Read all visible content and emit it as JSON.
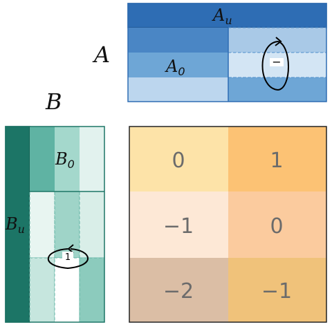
{
  "labels": {
    "A": "A",
    "B": "B",
    "A_u_main": "A",
    "A_u_sub": "u",
    "A_0_main": "A",
    "A_0_sub": "0",
    "B_0_main": "B",
    "B_0_sub": "0",
    "B_u_main": "B",
    "B_u_sub": "u",
    "A_rotation_sign": "−",
    "B_rotation_sign": "1"
  },
  "grid": {
    "rows": [
      [
        "0",
        "1"
      ],
      [
        "−1",
        "0"
      ],
      [
        "−2",
        "−1"
      ]
    ]
  },
  "colors": {
    "A_dark": "#2e6db4",
    "A_mid": "#4f8fcb",
    "A_light": "#6fa7d6",
    "A_pale": "#bcd6ee",
    "B_dark": "#1c7566",
    "B_mid": "#5fb3a3",
    "B_light": "#9fd4c8",
    "B_pale": "#dff1ec",
    "grid_row1_left": "#fde3a8",
    "grid_row1_right": "#fcc274",
    "grid_row2_left": "#fde8d6",
    "grid_row2_right": "#fbcb9e",
    "grid_row3_left": "#dbbea5",
    "grid_row3_right": "#f0c27a"
  }
}
